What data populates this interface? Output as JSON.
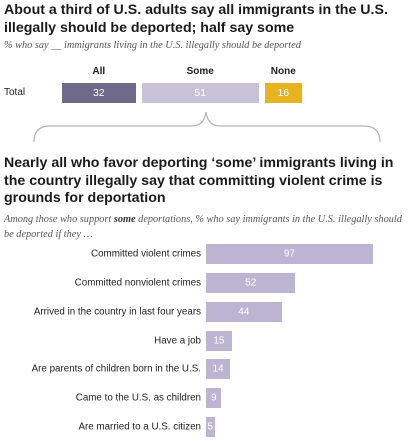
{
  "top": {
    "title": "About a third of U.S. adults say all immigrants in the U.S. illegally should be deported; half say some",
    "subtitle": "% who say __ immigrants living in the U.S. illegally should be deported",
    "row_label": "Total",
    "columns": [
      {
        "label": "All",
        "value": 32,
        "color": "#6f6a8a",
        "text_color": "#ffffff"
      },
      {
        "label": "Some",
        "value": 51,
        "color": "#c8c2d8",
        "text_color": "#ffffff"
      },
      {
        "label": "None",
        "value": 16,
        "color": "#e7b41f",
        "text_color": "#ffffff"
      }
    ]
  },
  "bottom": {
    "title": "Nearly all who favor deporting ‘some’ immigrants living in the country illegally say that committing violent crime is grounds for deportation",
    "subtitle_pre": "Among those who support ",
    "subtitle_bold": "some",
    "subtitle_post": " deportations, % who say immigrants in the U.S. illegally should be deported if they …",
    "bar_color": "#bdb4d2"
  },
  "chart_data": [
    {
      "type": "bar",
      "orientation": "horizontal-stacked",
      "title": "About a third of U.S. adults say all immigrants in the U.S. illegally should be deported; half say some",
      "categories": [
        "Total"
      ],
      "series": [
        {
          "name": "All",
          "values": [
            32
          ]
        },
        {
          "name": "Some",
          "values": [
            51
          ]
        },
        {
          "name": "None",
          "values": [
            16
          ]
        }
      ]
    },
    {
      "type": "bar",
      "orientation": "horizontal",
      "title": "Nearly all who favor deporting ‘some’ immigrants living in the country illegally say that committing violent crime is grounds for deportation",
      "categories": [
        "Committed violent crimes",
        "Committed nonviolent crimes",
        "Arrived in the country in last four years",
        "Have a job",
        "Are parents of children born in the U.S.",
        "Came to the U.S. as children",
        "Are married to a U.S. citizen"
      ],
      "values": [
        97,
        52,
        44,
        15,
        14,
        9,
        5
      ],
      "xlim": [
        0,
        100
      ]
    }
  ]
}
